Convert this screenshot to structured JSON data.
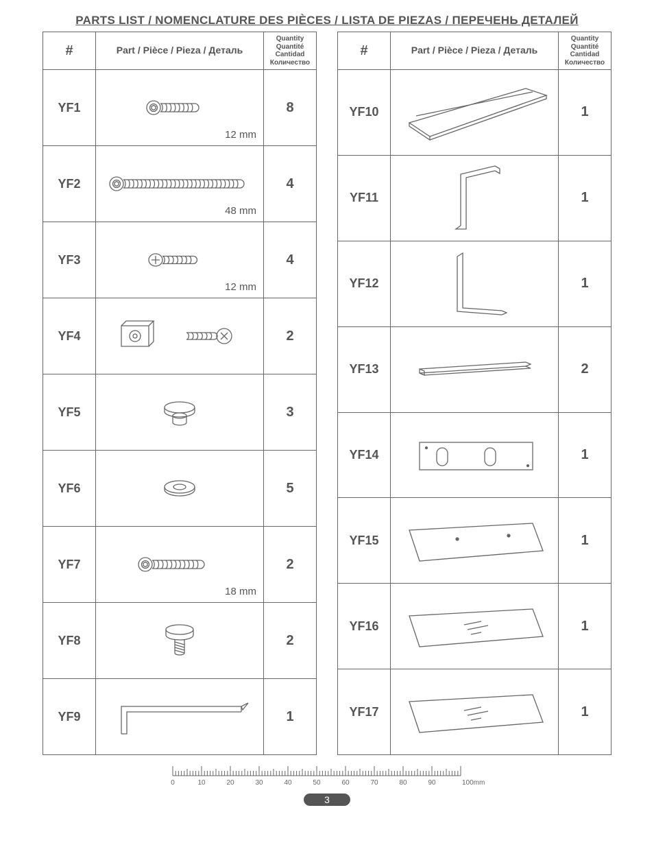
{
  "title": "PARTS LIST / NOMENCLATURE DES PIÈCES / LISTA DE PIEZAS / ПЕРЕЧЕНЬ ДЕТАЛЕЙ",
  "headers": {
    "hash": "#",
    "part": "Part / Pièce / Pieza / Деталь",
    "qty_lines": [
      "Quantity",
      "Quantité",
      "Cantidad",
      "Количество"
    ]
  },
  "left": [
    {
      "id": "YF1",
      "qty": "8",
      "dim": "12 mm",
      "icon": "screw-short"
    },
    {
      "id": "YF2",
      "qty": "4",
      "dim": "48 mm",
      "icon": "screw-long"
    },
    {
      "id": "YF3",
      "qty": "4",
      "dim": "12 mm",
      "icon": "screw-phillips-short"
    },
    {
      "id": "YF4",
      "qty": "2",
      "dim": "",
      "icon": "bracket-screw"
    },
    {
      "id": "YF5",
      "qty": "3",
      "dim": "",
      "icon": "knob"
    },
    {
      "id": "YF6",
      "qty": "5",
      "dim": "",
      "icon": "washer"
    },
    {
      "id": "YF7",
      "qty": "2",
      "dim": "18 mm",
      "icon": "screw-medium"
    },
    {
      "id": "YF8",
      "qty": "2",
      "dim": "",
      "icon": "thumbscrew"
    },
    {
      "id": "YF9",
      "qty": "1",
      "dim": "",
      "icon": "allen-key"
    }
  ],
  "right": [
    {
      "id": "YF10",
      "qty": "1",
      "icon": "panel-large"
    },
    {
      "id": "YF11",
      "qty": "1",
      "icon": "frame-leg-a"
    },
    {
      "id": "YF12",
      "qty": "1",
      "icon": "frame-leg-b"
    },
    {
      "id": "YF13",
      "qty": "2",
      "icon": "bar"
    },
    {
      "id": "YF14",
      "qty": "1",
      "icon": "plate-slots"
    },
    {
      "id": "YF15",
      "qty": "1",
      "icon": "glass-dots"
    },
    {
      "id": "YF16",
      "qty": "1",
      "icon": "glass-lines"
    },
    {
      "id": "YF17",
      "qty": "1",
      "icon": "glass-lines"
    }
  ],
  "ruler": {
    "ticks": [
      0,
      10,
      20,
      30,
      40,
      50,
      60,
      70,
      80,
      90
    ],
    "end_label": "100mm"
  },
  "page_number": "3",
  "colors": {
    "stroke": "#666666",
    "text": "#555555",
    "bg": "#ffffff"
  }
}
